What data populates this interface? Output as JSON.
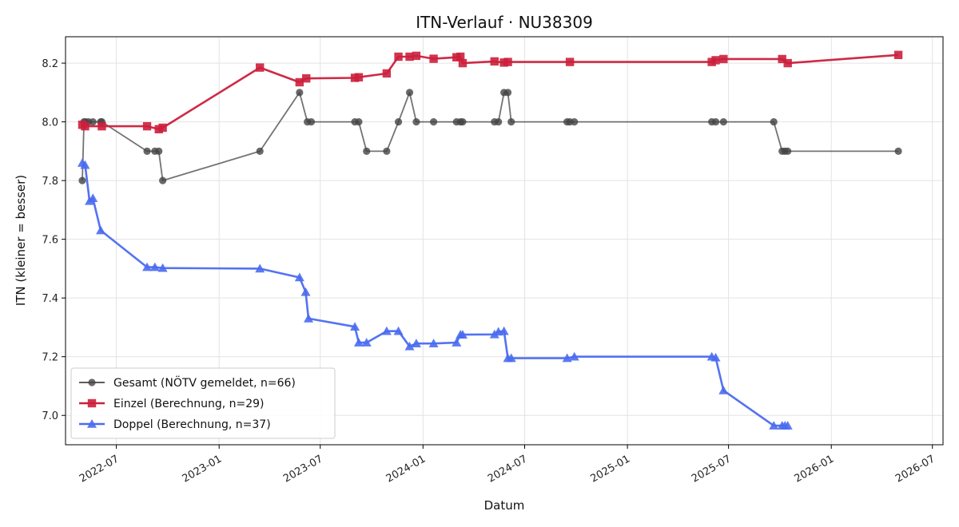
{
  "chart_data": {
    "type": "line",
    "title": "ITN-Verlauf · NU38309",
    "xlabel": "Datum",
    "ylabel": "ITN  (kleiner = besser)",
    "xlim": [
      "2022-04-01",
      "2026-07-20"
    ],
    "ylim": [
      6.9,
      8.29
    ],
    "x_ticks": [
      "2022-07-01",
      "2023-01-01",
      "2023-07-01",
      "2024-01-01",
      "2024-07-01",
      "2025-01-01",
      "2025-07-01",
      "2026-01-01",
      "2026-07-01"
    ],
    "x_tick_labels": [
      "2022-07",
      "2023-01",
      "2023-07",
      "2024-01",
      "2024-07",
      "2025-01",
      "2025-07",
      "2026-01",
      "2026-07"
    ],
    "y_ticks": [
      7.0,
      7.2,
      7.4,
      7.6,
      7.8,
      8.0,
      8.2
    ],
    "y_tick_labels": [
      "7.0",
      "7.2",
      "7.4",
      "7.6",
      "7.8",
      "8.0",
      "8.2"
    ],
    "grid": true,
    "legend_position": "lower-left",
    "series": [
      {
        "name": "Gesamt (NÖTV gemeldet, n=66)",
        "color": "#444444",
        "marker": "circle",
        "points": [
          [
            "2022-05-01",
            7.8
          ],
          [
            "2022-05-04",
            8.0
          ],
          [
            "2022-05-07",
            8.0
          ],
          [
            "2022-05-12",
            8.0
          ],
          [
            "2022-05-20",
            8.0
          ],
          [
            "2022-06-03",
            8.0
          ],
          [
            "2022-06-05",
            8.0
          ],
          [
            "2022-08-25",
            7.9
          ],
          [
            "2022-09-08",
            7.9
          ],
          [
            "2022-09-15",
            7.9
          ],
          [
            "2022-09-22",
            7.8
          ],
          [
            "2023-03-15",
            7.9
          ],
          [
            "2023-05-25",
            8.1
          ],
          [
            "2023-06-08",
            8.0
          ],
          [
            "2023-06-15",
            8.0
          ],
          [
            "2023-09-01",
            8.0
          ],
          [
            "2023-09-08",
            8.0
          ],
          [
            "2023-09-22",
            7.9
          ],
          [
            "2023-10-28",
            7.9
          ],
          [
            "2023-11-18",
            8.0
          ],
          [
            "2023-12-08",
            8.1
          ],
          [
            "2023-12-20",
            8.0
          ],
          [
            "2024-01-20",
            8.0
          ],
          [
            "2024-03-01",
            8.0
          ],
          [
            "2024-03-08",
            8.0
          ],
          [
            "2024-03-12",
            8.0
          ],
          [
            "2024-05-08",
            8.0
          ],
          [
            "2024-05-15",
            8.0
          ],
          [
            "2024-05-25",
            8.1
          ],
          [
            "2024-06-01",
            8.1
          ],
          [
            "2024-06-07",
            8.0
          ],
          [
            "2024-09-15",
            8.0
          ],
          [
            "2024-09-20",
            8.0
          ],
          [
            "2024-09-28",
            8.0
          ],
          [
            "2025-06-01",
            8.0
          ],
          [
            "2025-06-08",
            8.0
          ],
          [
            "2025-06-22",
            8.0
          ],
          [
            "2025-09-20",
            8.0
          ],
          [
            "2025-10-05",
            7.9
          ],
          [
            "2025-10-10",
            7.9
          ],
          [
            "2025-10-15",
            7.9
          ],
          [
            "2026-05-01",
            7.9
          ]
        ]
      },
      {
        "name": "Einzel (Berechnung, n=29)",
        "color": "#cc1f3c",
        "marker": "square",
        "points": [
          [
            "2022-05-01",
            7.99
          ],
          [
            "2022-05-06",
            7.985
          ],
          [
            "2022-06-05",
            7.985
          ],
          [
            "2022-08-25",
            7.985
          ],
          [
            "2022-09-15",
            7.975
          ],
          [
            "2022-09-22",
            7.98
          ],
          [
            "2023-03-15",
            8.185
          ],
          [
            "2023-05-25",
            8.135
          ],
          [
            "2023-06-06",
            8.148
          ],
          [
            "2023-09-01",
            8.15
          ],
          [
            "2023-09-08",
            8.152
          ],
          [
            "2023-10-28",
            8.165
          ],
          [
            "2023-11-18",
            8.222
          ],
          [
            "2023-12-08",
            8.222
          ],
          [
            "2023-12-20",
            8.225
          ],
          [
            "2024-01-20",
            8.215
          ],
          [
            "2024-03-01",
            8.22
          ],
          [
            "2024-03-08",
            8.222
          ],
          [
            "2024-03-12",
            8.2
          ],
          [
            "2024-05-08",
            8.206
          ],
          [
            "2024-05-25",
            8.202
          ],
          [
            "2024-06-01",
            8.204
          ],
          [
            "2024-09-20",
            8.204
          ],
          [
            "2025-06-01",
            8.204
          ],
          [
            "2025-06-08",
            8.21
          ],
          [
            "2025-06-22",
            8.214
          ],
          [
            "2025-10-05",
            8.214
          ],
          [
            "2025-10-15",
            8.2
          ],
          [
            "2026-05-01",
            8.228
          ]
        ]
      },
      {
        "name": "Doppel (Berechnung, n=37)",
        "color": "#4a6cf0",
        "marker": "triangle",
        "points": [
          [
            "2022-05-01",
            7.86
          ],
          [
            "2022-05-06",
            7.853
          ],
          [
            "2022-05-14",
            7.73
          ],
          [
            "2022-05-20",
            7.74
          ],
          [
            "2022-06-03",
            7.63
          ],
          [
            "2022-08-25",
            7.505
          ],
          [
            "2022-09-08",
            7.505
          ],
          [
            "2022-09-22",
            7.502
          ],
          [
            "2023-03-15",
            7.5
          ],
          [
            "2023-05-25",
            7.47
          ],
          [
            "2023-06-05",
            7.42
          ],
          [
            "2023-06-10",
            7.33
          ],
          [
            "2023-09-01",
            7.302
          ],
          [
            "2023-09-08",
            7.248
          ],
          [
            "2023-09-22",
            7.248
          ],
          [
            "2023-10-28",
            7.287
          ],
          [
            "2023-11-18",
            7.287
          ],
          [
            "2023-12-08",
            7.235
          ],
          [
            "2023-12-20",
            7.245
          ],
          [
            "2024-01-20",
            7.245
          ],
          [
            "2024-03-01",
            7.248
          ],
          [
            "2024-03-08",
            7.275
          ],
          [
            "2024-03-12",
            7.275
          ],
          [
            "2024-05-08",
            7.276
          ],
          [
            "2024-05-15",
            7.285
          ],
          [
            "2024-05-25",
            7.287
          ],
          [
            "2024-06-01",
            7.195
          ],
          [
            "2024-06-07",
            7.195
          ],
          [
            "2024-09-15",
            7.195
          ],
          [
            "2024-09-28",
            7.2
          ],
          [
            "2025-06-01",
            7.2
          ],
          [
            "2025-06-08",
            7.197
          ],
          [
            "2025-06-22",
            7.085
          ],
          [
            "2025-09-20",
            6.965
          ],
          [
            "2025-10-05",
            6.965
          ],
          [
            "2025-10-10",
            6.965
          ],
          [
            "2025-10-15",
            6.965
          ]
        ]
      }
    ]
  }
}
